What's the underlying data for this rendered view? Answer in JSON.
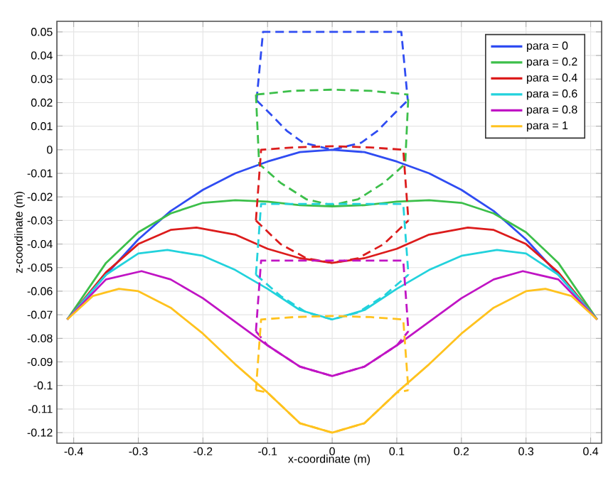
{
  "chart_data": {
    "type": "line",
    "xlabel": "x-coordinate (m)",
    "ylabel": "z-coordinate (m)",
    "xlim": [
      -0.426,
      0.417
    ],
    "ylim": [
      -0.1245,
      0.0545
    ],
    "xticks": [
      -0.4,
      -0.3,
      -0.2,
      -0.1,
      0,
      0.1,
      0.2,
      0.3,
      0.4
    ],
    "yticks": [
      -0.12,
      -0.11,
      -0.1,
      -0.09,
      -0.08,
      -0.07,
      -0.06,
      -0.05,
      -0.04,
      -0.03,
      -0.02,
      -0.01,
      0,
      0.01,
      0.02,
      0.03,
      0.04,
      0.05
    ],
    "grid": true,
    "legend": "top right",
    "series": [
      {
        "color": "#2f4cf2",
        "line_style": "dashed",
        "x": [
          -0.117,
          -0.107,
          0.107,
          0.117
        ],
        "values": [
          0.021,
          0.05,
          0.05,
          0.021
        ]
      },
      {
        "color": "#2f4cf2",
        "line_style": "dashed",
        "x": [
          -0.117,
          -0.095,
          -0.07,
          -0.045,
          0,
          0.045,
          0.07,
          0.095,
          0.117
        ],
        "values": [
          0.021,
          0.015,
          0.008,
          0.003,
          0,
          0.003,
          0.008,
          0.015,
          0.021
        ]
      },
      {
        "name": "para = 0",
        "color": "#2f4cf2",
        "line_style": "solid",
        "x": [
          -0.41,
          -0.35,
          -0.3,
          -0.25,
          -0.2,
          -0.15,
          -0.1,
          -0.05,
          0,
          0.05,
          0.1,
          0.15,
          0.2,
          0.25,
          0.3,
          0.35,
          0.41
        ],
        "values": [
          -0.072,
          -0.053,
          -0.038,
          -0.026,
          -0.017,
          -0.01,
          -0.005,
          -0.001,
          0,
          -0.001,
          -0.005,
          -0.01,
          -0.017,
          -0.026,
          -0.038,
          -0.053,
          -0.072
        ]
      },
      {
        "color": "#3cbf4a",
        "line_style": "dashed",
        "x": [
          -0.118,
          -0.06,
          0,
          0.06,
          0.118
        ],
        "values": [
          0.0234,
          0.025,
          0.0255,
          0.025,
          0.0234
        ]
      },
      {
        "color": "#3cbf4a",
        "line_style": "dashed",
        "x": [
          -0.118,
          -0.113,
          -0.08,
          -0.04,
          0,
          0.04,
          0.08,
          0.113,
          0.118
        ],
        "values": [
          0.0234,
          -0.006,
          -0.014,
          -0.021,
          -0.0235,
          -0.021,
          -0.014,
          -0.006,
          0.0234
        ]
      },
      {
        "name": "para = 0.2",
        "color": "#3cbf4a",
        "line_style": "solid",
        "x": [
          -0.41,
          -0.35,
          -0.3,
          -0.25,
          -0.2,
          -0.15,
          -0.1,
          -0.05,
          0,
          0.05,
          0.1,
          0.15,
          0.2,
          0.25,
          0.3,
          0.35,
          0.41
        ],
        "values": [
          -0.072,
          -0.048,
          -0.035,
          -0.027,
          -0.0225,
          -0.0214,
          -0.022,
          -0.0235,
          -0.024,
          -0.0235,
          -0.022,
          -0.0214,
          -0.0225,
          -0.027,
          -0.035,
          -0.048,
          -0.072
        ]
      },
      {
        "color": "#dc1c1c",
        "line_style": "dashed",
        "x": [
          -0.118,
          -0.11,
          -0.06,
          0,
          0.06,
          0.11,
          0.118
        ],
        "values": [
          -0.03,
          0,
          0.001,
          0.0015,
          0.001,
          0,
          -0.03
        ]
      },
      {
        "color": "#dc1c1c",
        "line_style": "dashed",
        "x": [
          -0.118,
          -0.08,
          -0.04,
          0,
          0.04,
          0.08,
          0.118
        ],
        "values": [
          -0.03,
          -0.04,
          -0.046,
          -0.048,
          -0.046,
          -0.04,
          -0.03
        ]
      },
      {
        "name": "para = 0.4",
        "color": "#dc1c1c",
        "line_style": "solid",
        "x": [
          -0.41,
          -0.35,
          -0.3,
          -0.25,
          -0.21,
          -0.15,
          -0.1,
          -0.05,
          0,
          0.05,
          0.1,
          0.15,
          0.21,
          0.25,
          0.3,
          0.35,
          0.41
        ],
        "values": [
          -0.072,
          -0.052,
          -0.04,
          -0.034,
          -0.033,
          -0.036,
          -0.042,
          -0.046,
          -0.048,
          -0.046,
          -0.042,
          -0.036,
          -0.033,
          -0.034,
          -0.04,
          -0.052,
          -0.072
        ]
      },
      {
        "color": "#22d2dc",
        "line_style": "dashed",
        "x": [
          -0.118,
          -0.11,
          0,
          0.11,
          0.118
        ],
        "values": [
          -0.053,
          -0.023,
          -0.023,
          -0.023,
          -0.053
        ]
      },
      {
        "color": "#22d2dc",
        "line_style": "dashed",
        "x": [
          -0.118,
          -0.08,
          -0.04,
          0,
          0.04,
          0.08,
          0.118
        ],
        "values": [
          -0.053,
          -0.062,
          -0.069,
          -0.072,
          -0.069,
          -0.062,
          -0.053
        ]
      },
      {
        "name": "para = 0.6",
        "color": "#22d2dc",
        "line_style": "solid",
        "x": [
          -0.41,
          -0.35,
          -0.3,
          -0.255,
          -0.2,
          -0.15,
          -0.1,
          -0.05,
          0,
          0.05,
          0.1,
          0.15,
          0.2,
          0.255,
          0.3,
          0.35,
          0.41
        ],
        "values": [
          -0.072,
          -0.053,
          -0.044,
          -0.0425,
          -0.045,
          -0.051,
          -0.059,
          -0.068,
          -0.072,
          -0.068,
          -0.059,
          -0.051,
          -0.045,
          -0.0425,
          -0.044,
          -0.053,
          -0.072
        ]
      },
      {
        "color": "#c014c4",
        "line_style": "dashed",
        "x": [
          -0.118,
          -0.11,
          0,
          0.11,
          0.118
        ],
        "values": [
          -0.077,
          -0.047,
          -0.047,
          -0.047,
          -0.077
        ]
      },
      {
        "color": "#c014c4",
        "line_style": "dashed",
        "x": [
          -0.118,
          -0.1,
          -0.05,
          0,
          0.05,
          0.1,
          0.118
        ],
        "values": [
          -0.077,
          -0.083,
          -0.092,
          -0.096,
          -0.092,
          -0.083,
          -0.077
        ]
      },
      {
        "name": "para = 0.8",
        "color": "#c014c4",
        "line_style": "solid",
        "x": [
          -0.41,
          -0.35,
          -0.295,
          -0.25,
          -0.2,
          -0.15,
          -0.1,
          -0.05,
          0,
          0.05,
          0.1,
          0.15,
          0.2,
          0.25,
          0.295,
          0.35,
          0.41
        ],
        "values": [
          -0.072,
          -0.055,
          -0.0515,
          -0.055,
          -0.063,
          -0.073,
          -0.083,
          -0.092,
          -0.096,
          -0.092,
          -0.083,
          -0.073,
          -0.063,
          -0.055,
          -0.0515,
          -0.055,
          -0.072
        ]
      },
      {
        "color": "#ffc21e",
        "line_style": "dashed",
        "x": [
          -0.118,
          -0.11,
          -0.06,
          0,
          0.06,
          0.11,
          0.118
        ],
        "values": [
          -0.102,
          -0.072,
          -0.071,
          -0.0705,
          -0.071,
          -0.072,
          -0.102
        ]
      },
      {
        "color": "#ffc21e",
        "line_style": "dashed",
        "x": [
          -0.118,
          -0.1,
          -0.05,
          0,
          0.05,
          0.1,
          0.118
        ],
        "values": [
          -0.102,
          -0.103,
          -0.116,
          -0.12,
          -0.116,
          -0.103,
          -0.102
        ]
      },
      {
        "name": "para = 1",
        "color": "#ffc21e",
        "line_style": "solid",
        "x": [
          -0.41,
          -0.37,
          -0.33,
          -0.3,
          -0.25,
          -0.2,
          -0.15,
          -0.1,
          -0.05,
          0,
          0.05,
          0.1,
          0.15,
          0.2,
          0.25,
          0.3,
          0.33,
          0.37,
          0.41
        ],
        "values": [
          -0.072,
          -0.062,
          -0.059,
          -0.06,
          -0.067,
          -0.078,
          -0.091,
          -0.103,
          -0.116,
          -0.12,
          -0.116,
          -0.103,
          -0.091,
          -0.078,
          -0.067,
          -0.06,
          -0.059,
          -0.062,
          -0.072
        ]
      }
    ]
  }
}
